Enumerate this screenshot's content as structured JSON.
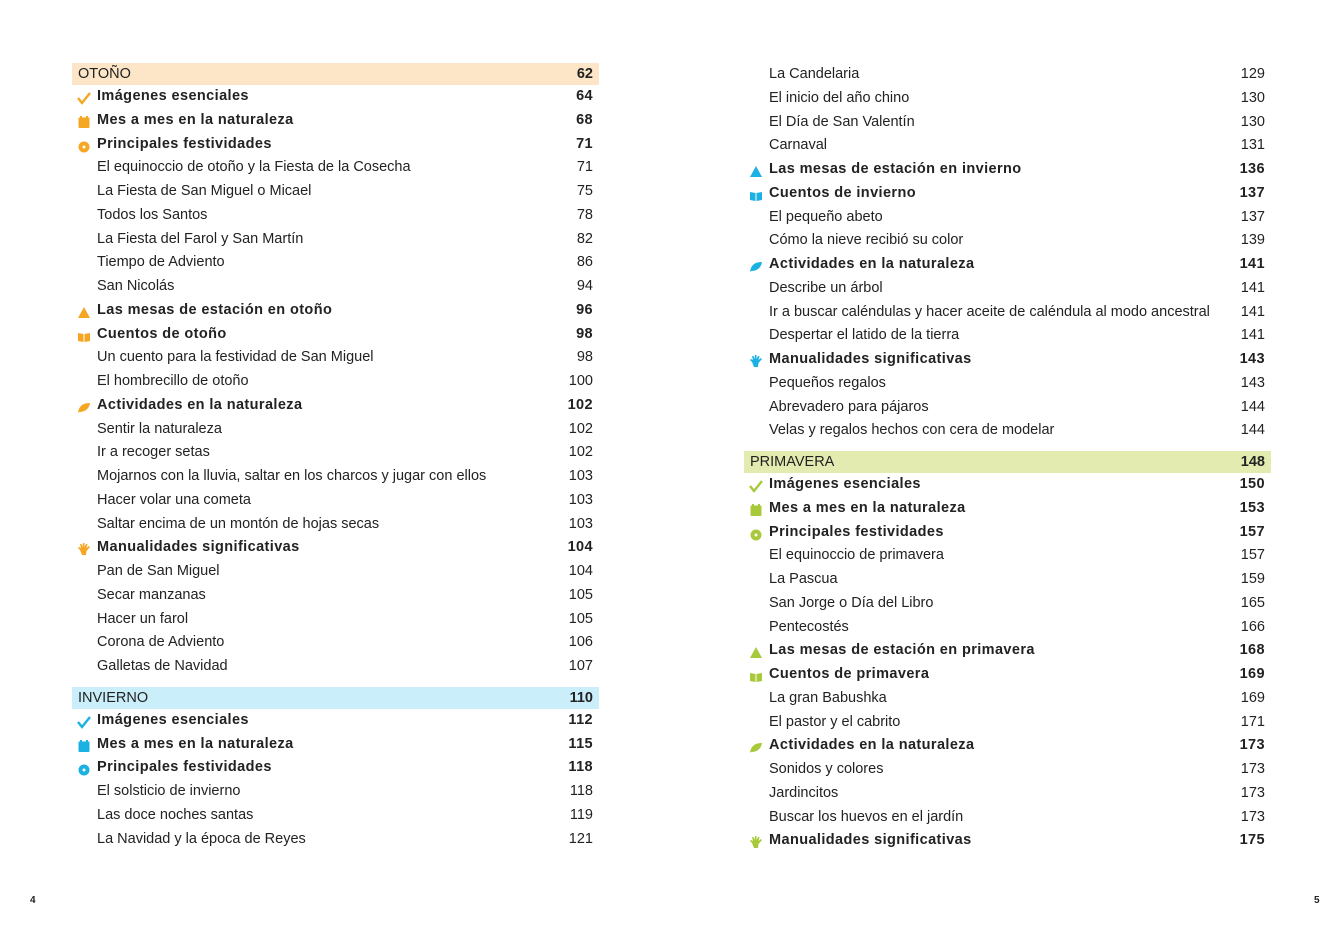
{
  "colors": {
    "otono": "#f5a623",
    "otono_bg": "#fde6c8",
    "invierno": "#1bb1e2",
    "invierno_bg": "#caeefa",
    "primavera": "#a8c93a",
    "primavera_bg": "#e3ebb0"
  },
  "left": [
    {
      "kind": "sec",
      "text": "OTOÑO",
      "page": "62",
      "season": "otono"
    },
    {
      "kind": "item",
      "icon": "check",
      "text": "Imágenes esenciales",
      "page": "64",
      "season": "otono"
    },
    {
      "kind": "item",
      "icon": "calendar",
      "text": "Mes a mes en la naturaleza",
      "page": "68",
      "season": "otono"
    },
    {
      "kind": "item",
      "icon": "circle",
      "text": "Principales festividades",
      "page": "71",
      "season": "otono"
    },
    {
      "kind": "sub",
      "text": "El equinoccio de otoño y la Fiesta de la Cosecha",
      "page": "71"
    },
    {
      "kind": "sub",
      "text": "La Fiesta de San Miguel o Micael",
      "page": "75"
    },
    {
      "kind": "sub",
      "text": "Todos los Santos",
      "page": "78"
    },
    {
      "kind": "sub",
      "text": "La Fiesta del Farol y San Martín",
      "page": "82"
    },
    {
      "kind": "sub",
      "text": "Tiempo de Adviento",
      "page": "86"
    },
    {
      "kind": "sub",
      "text": "San Nicolás",
      "page": "94"
    },
    {
      "kind": "item",
      "icon": "triangle",
      "text": "Las mesas de estación en otoño",
      "page": "96",
      "season": "otono"
    },
    {
      "kind": "item",
      "icon": "book",
      "text": "Cuentos de otoño",
      "page": "98",
      "season": "otono"
    },
    {
      "kind": "sub",
      "text": "Un cuento para la festividad de San Miguel",
      "page": "98"
    },
    {
      "kind": "sub",
      "text": "El hombrecillo de otoño",
      "page": "100"
    },
    {
      "kind": "item",
      "icon": "leaf",
      "text": "Actividades en la naturaleza",
      "page": "102",
      "season": "otono"
    },
    {
      "kind": "sub",
      "text": "Sentir la naturaleza",
      "page": "102"
    },
    {
      "kind": "sub",
      "text": "Ir a recoger setas",
      "page": "102"
    },
    {
      "kind": "sub",
      "text": "Mojarnos con la lluvia, saltar en los charcos y jugar con ellos",
      "page": "103"
    },
    {
      "kind": "sub",
      "text": "Hacer volar una cometa",
      "page": "103"
    },
    {
      "kind": "sub",
      "text": "Saltar encima de un montón de hojas secas",
      "page": "103"
    },
    {
      "kind": "item",
      "icon": "hand",
      "text": "Manualidades significativas",
      "page": "104",
      "season": "otono"
    },
    {
      "kind": "sub",
      "text": "Pan de San Miguel",
      "page": "104"
    },
    {
      "kind": "sub",
      "text": "Secar manzanas",
      "page": "105"
    },
    {
      "kind": "sub",
      "text": "Hacer un farol",
      "page": "105"
    },
    {
      "kind": "sub",
      "text": "Corona de Adviento",
      "page": "106"
    },
    {
      "kind": "sub",
      "text": "Galletas de Navidad",
      "page": "107"
    },
    {
      "kind": "sec",
      "text": "INVIERNO",
      "page": "110",
      "season": "invierno"
    },
    {
      "kind": "item",
      "icon": "check",
      "text": "Imágenes esenciales",
      "page": "112",
      "season": "invierno"
    },
    {
      "kind": "item",
      "icon": "calendar",
      "text": "Mes a mes en la naturaleza",
      "page": "115",
      "season": "invierno"
    },
    {
      "kind": "item",
      "icon": "circle",
      "text": "Principales festividades",
      "page": "118",
      "season": "invierno"
    },
    {
      "kind": "sub",
      "text": "El solsticio de invierno",
      "page": "118"
    },
    {
      "kind": "sub",
      "text": "Las doce noches santas",
      "page": "119"
    },
    {
      "kind": "sub",
      "text": "La Navidad y la época de Reyes",
      "page": "121"
    }
  ],
  "right": [
    {
      "kind": "sub",
      "text": "La Candelaria",
      "page": "129"
    },
    {
      "kind": "sub",
      "text": "El inicio del año chino",
      "page": "130"
    },
    {
      "kind": "sub",
      "text": "El Día de San Valentín",
      "page": "130"
    },
    {
      "kind": "sub",
      "text": "Carnaval",
      "page": "131"
    },
    {
      "kind": "item",
      "icon": "triangle",
      "text": "Las mesas de estación en invierno",
      "page": "136",
      "season": "invierno"
    },
    {
      "kind": "item",
      "icon": "book",
      "text": "Cuentos de invierno",
      "page": "137",
      "season": "invierno"
    },
    {
      "kind": "sub",
      "text": "El pequeño abeto",
      "page": "137"
    },
    {
      "kind": "sub",
      "text": "Cómo la nieve recibió su color",
      "page": "139"
    },
    {
      "kind": "item",
      "icon": "leaf",
      "text": "Actividades en la naturaleza",
      "page": "141",
      "season": "invierno"
    },
    {
      "kind": "sub",
      "text": "Describe un árbol",
      "page": "141"
    },
    {
      "kind": "sub",
      "text": "Ir a buscar caléndulas y hacer aceite de caléndula al modo ancestral",
      "page": "141"
    },
    {
      "kind": "sub",
      "text": "Despertar el latido de la tierra",
      "page": "141"
    },
    {
      "kind": "item",
      "icon": "hand",
      "text": "Manualidades significativas",
      "page": "143",
      "season": "invierno"
    },
    {
      "kind": "sub",
      "text": "Pequeños regalos",
      "page": "143"
    },
    {
      "kind": "sub",
      "text": "Abrevadero para pájaros",
      "page": "144"
    },
    {
      "kind": "sub",
      "text": "Velas y regalos hechos con cera de modelar",
      "page": "144"
    },
    {
      "kind": "sec",
      "text": "PRIMAVERA",
      "page": "148",
      "season": "primavera"
    },
    {
      "kind": "item",
      "icon": "check",
      "text": "Imágenes esenciales",
      "page": "150",
      "season": "primavera"
    },
    {
      "kind": "item",
      "icon": "calendar",
      "text": "Mes a mes en la naturaleza",
      "page": "153",
      "season": "primavera"
    },
    {
      "kind": "item",
      "icon": "circle",
      "text": "Principales festividades",
      "page": "157",
      "season": "primavera"
    },
    {
      "kind": "sub",
      "text": "El equinoccio de primavera",
      "page": "157"
    },
    {
      "kind": "sub",
      "text": "La Pascua",
      "page": "159"
    },
    {
      "kind": "sub",
      "text": "San Jorge o Día del Libro",
      "page": "165"
    },
    {
      "kind": "sub",
      "text": "Pentecostés",
      "page": "166"
    },
    {
      "kind": "item",
      "icon": "triangle",
      "text": "Las mesas de estación en primavera",
      "page": "168",
      "season": "primavera"
    },
    {
      "kind": "item",
      "icon": "book",
      "text": "Cuentos de primavera",
      "page": "169",
      "season": "primavera"
    },
    {
      "kind": "sub",
      "text": "La gran Babushka",
      "page": "169"
    },
    {
      "kind": "sub",
      "text": "El pastor y el cabrito",
      "page": "171"
    },
    {
      "kind": "item",
      "icon": "leaf",
      "text": "Actividades en la naturaleza",
      "page": "173",
      "season": "primavera"
    },
    {
      "kind": "sub",
      "text": "Sonidos y colores",
      "page": "173"
    },
    {
      "kind": "sub",
      "text": "Jardincitos",
      "page": "173"
    },
    {
      "kind": "sub",
      "text": "Buscar los huevos en el jardín",
      "page": "173"
    },
    {
      "kind": "item",
      "icon": "hand",
      "text": "Manualidades significativas",
      "page": "175",
      "season": "primavera"
    }
  ],
  "page_numbers": {
    "left": "4",
    "right": "5"
  }
}
